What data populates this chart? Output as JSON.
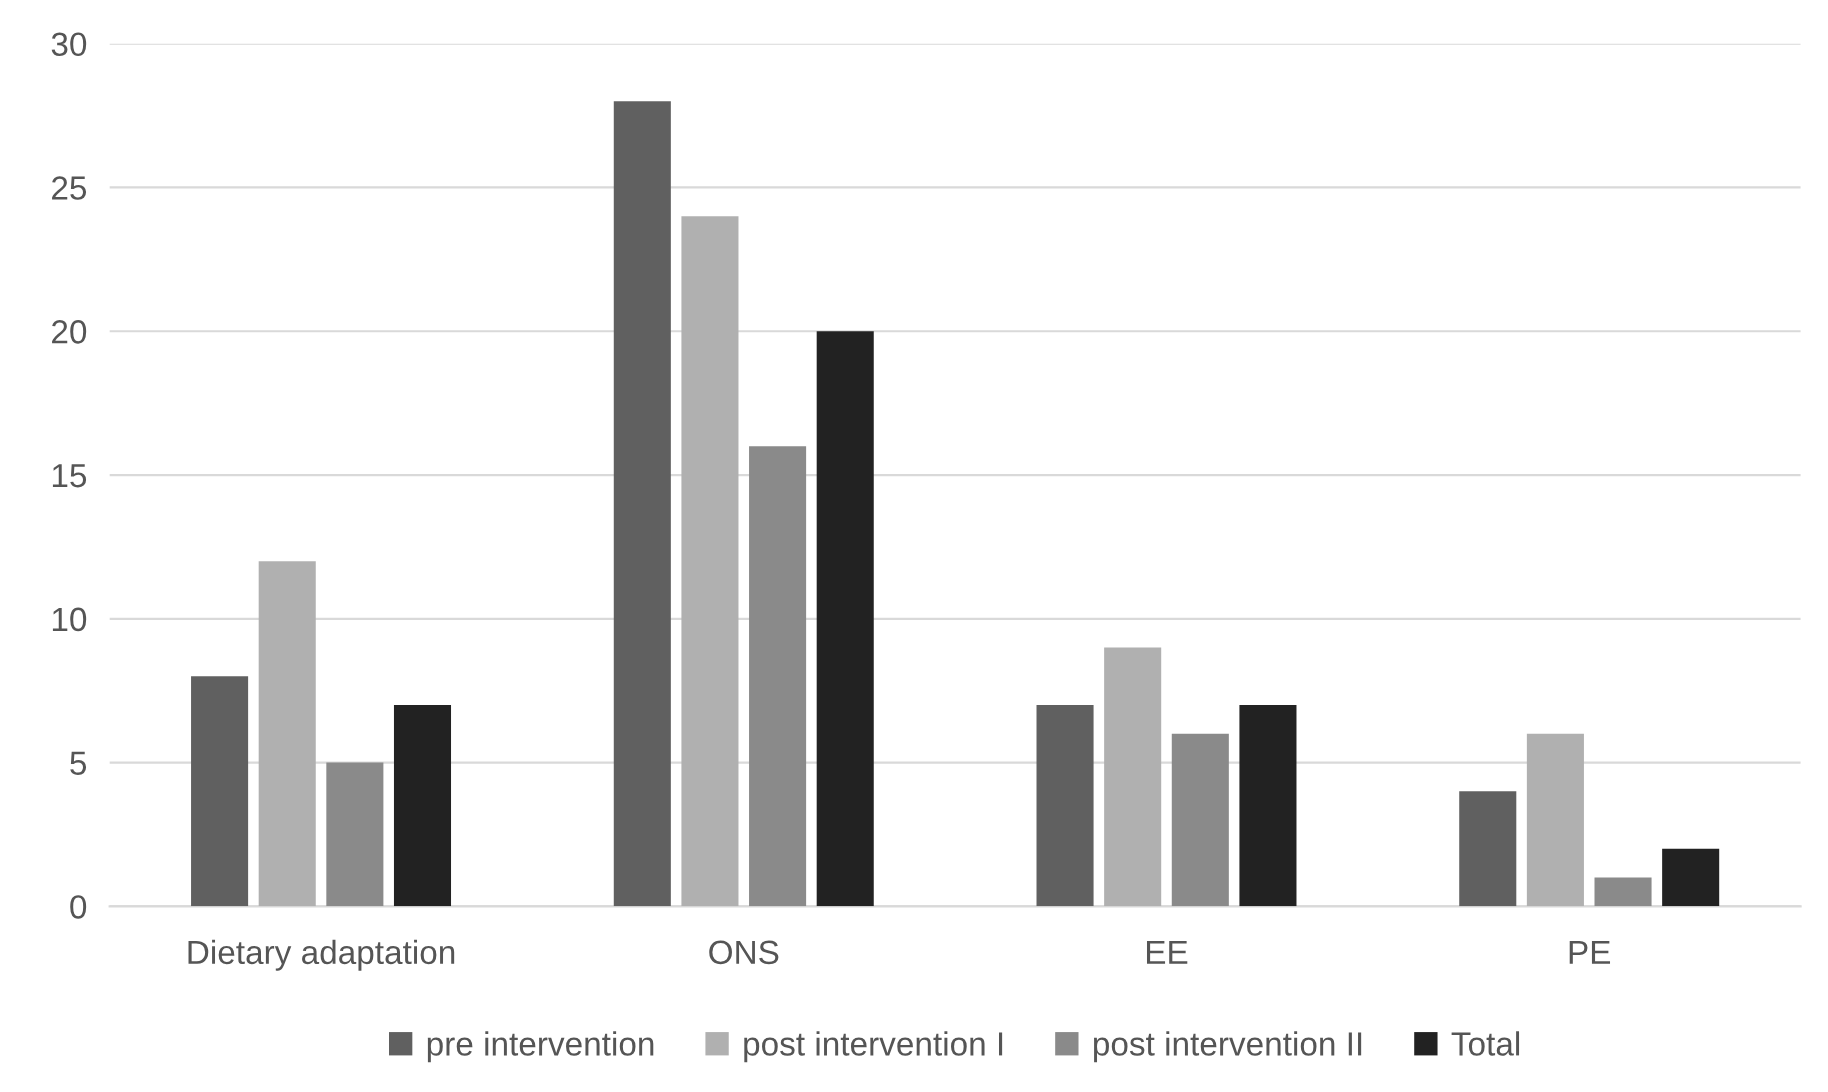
{
  "chart_data": {
    "type": "bar",
    "categories": [
      "Dietary adaptation",
      "ONS",
      "EE",
      "PE"
    ],
    "series": [
      {
        "name": "pre intervention",
        "color": "#606060",
        "values": [
          8,
          28,
          7,
          4
        ]
      },
      {
        "name": "post intervention I",
        "color": "#b0b0b0",
        "values": [
          12,
          24,
          9,
          6
        ]
      },
      {
        "name": "post intervention II",
        "color": "#8a8a8a",
        "values": [
          5,
          16,
          6,
          1
        ]
      },
      {
        "name": "Total",
        "color": "#222222",
        "values": [
          7,
          20,
          7,
          2
        ]
      }
    ],
    "ylim": [
      0,
      30
    ],
    "yticks": [
      0,
      5,
      10,
      15,
      20,
      25,
      30
    ],
    "grid": "y",
    "legend": "bottom"
  }
}
